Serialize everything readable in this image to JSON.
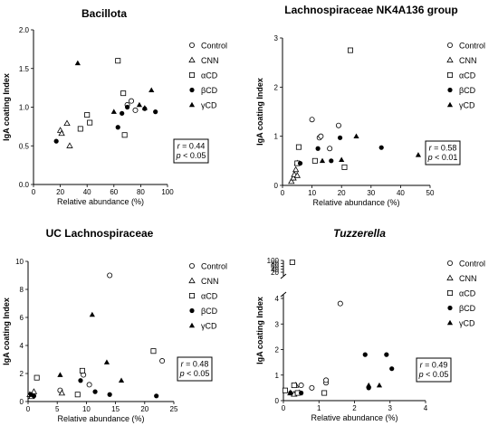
{
  "chart_data": [
    {
      "type": "scatter",
      "title": "Bacillota",
      "title_italic": false,
      "xlabel": "Relative abundance (%)",
      "ylabel": "IgA coating Index",
      "xlim": [
        0,
        100
      ],
      "ylim": [
        0,
        2.0
      ],
      "xticks": [
        "0",
        "20",
        "40",
        "60",
        "80",
        "100"
      ],
      "yticks": [
        "0.0",
        "0.5",
        "1.0",
        "1.5",
        "2.0"
      ],
      "legend_position": "top-right",
      "stat": {
        "r": "0.44",
        "p": "< 0.05"
      },
      "series": [
        {
          "name": "Control",
          "values": [
            [
              70,
              1.03
            ],
            [
              73,
              1.08
            ],
            [
              76,
              0.96
            ]
          ]
        },
        {
          "name": "CNN",
          "values": [
            [
              20,
              0.7
            ],
            [
              21,
              0.66
            ],
            [
              25,
              0.79
            ],
            [
              27,
              0.5
            ]
          ]
        },
        {
          "name": "αCD",
          "values": [
            [
              35,
              0.72
            ],
            [
              40,
              0.9
            ],
            [
              42,
              0.8
            ],
            [
              63,
              1.6
            ],
            [
              67,
              1.18
            ],
            [
              68,
              0.64
            ]
          ]
        },
        {
          "name": "βCD",
          "values": [
            [
              17,
              0.56
            ],
            [
              63,
              0.74
            ],
            [
              66,
              0.92
            ],
            [
              70,
              1.0
            ],
            [
              83,
              0.98
            ],
            [
              91,
              0.94
            ]
          ]
        },
        {
          "name": "γCD",
          "values": [
            [
              33,
              1.57
            ],
            [
              60,
              0.94
            ],
            [
              79,
              1.03
            ],
            [
              83,
              0.99
            ],
            [
              88,
              1.22
            ]
          ]
        }
      ]
    },
    {
      "type": "scatter",
      "title": "Lachnospiraceae NK4A136 group",
      "title_italic": false,
      "xlabel": "Relative abundance (%)",
      "ylabel": "IgA coating Index",
      "xlim": [
        0,
        50
      ],
      "ylim": [
        0,
        3
      ],
      "xticks": [
        "0",
        "10",
        "20",
        "30",
        "40",
        "50"
      ],
      "yticks": [
        "0",
        "1",
        "2",
        "3"
      ],
      "legend_position": "top-right",
      "stat": {
        "r": "0.58",
        "p": "< 0.01"
      },
      "series": [
        {
          "name": "Control",
          "values": [
            [
              10,
              1.34
            ],
            [
              12.5,
              0.97
            ],
            [
              13,
              1.0
            ],
            [
              16,
              0.75
            ],
            [
              19,
              1.22
            ]
          ]
        },
        {
          "name": "CNN",
          "values": [
            [
              3,
              0.08
            ],
            [
              3.7,
              0.15
            ],
            [
              4,
              0.22
            ],
            [
              4.5,
              0.32
            ],
            [
              5,
              0.2
            ],
            [
              5,
              0.45
            ]
          ]
        },
        {
          "name": "αCD",
          "values": [
            [
              5,
              0.45
            ],
            [
              5.5,
              0.78
            ],
            [
              11,
              0.5
            ],
            [
              21,
              0.37
            ],
            [
              23,
              2.75
            ]
          ]
        },
        {
          "name": "βCD",
          "values": [
            [
              6,
              0.45
            ],
            [
              12,
              0.75
            ],
            [
              16.5,
              0.5
            ],
            [
              19.5,
              0.97
            ],
            [
              33.5,
              0.77
            ]
          ]
        },
        {
          "name": "γCD",
          "values": [
            [
              13.5,
              0.5
            ],
            [
              20,
              0.52
            ],
            [
              25,
              1.0
            ],
            [
              46,
              0.62
            ]
          ]
        }
      ]
    },
    {
      "type": "scatter",
      "title": "UC Lachnospiraceae",
      "title_italic": false,
      "xlabel": "Relative abundance (%)",
      "ylabel": "IgA coating Index",
      "xlim": [
        0,
        25
      ],
      "ylim": [
        0,
        10
      ],
      "xticks": [
        "0",
        "5",
        "10",
        "15",
        "20",
        "25"
      ],
      "yticks": [
        "0",
        "2",
        "4",
        "6",
        "8",
        "10"
      ],
      "legend_position": "top-right",
      "stat": {
        "r": "0.48",
        "p": "< 0.05"
      },
      "series": [
        {
          "name": "Control",
          "values": [
            [
              5.5,
              0.8
            ],
            [
              9.5,
              1.9
            ],
            [
              10.5,
              1.2
            ],
            [
              14,
              9.0
            ],
            [
              23,
              2.9
            ]
          ]
        },
        {
          "name": "CNN",
          "values": [
            [
              0.3,
              0.5
            ],
            [
              0.6,
              0.35
            ],
            [
              1,
              0.7
            ],
            [
              5.8,
              0.6
            ]
          ]
        },
        {
          "name": "αCD",
          "values": [
            [
              1.5,
              1.7
            ],
            [
              8.5,
              0.5
            ],
            [
              9.3,
              2.2
            ],
            [
              21.5,
              3.6
            ]
          ]
        },
        {
          "name": "βCD",
          "values": [
            [
              0.5,
              0.5
            ],
            [
              1,
              0.4
            ],
            [
              9,
              1.5
            ],
            [
              11.5,
              0.7
            ],
            [
              14,
              0.5
            ],
            [
              22,
              0.4
            ]
          ]
        },
        {
          "name": "γCD",
          "values": [
            [
              5.5,
              1.9
            ],
            [
              11,
              6.2
            ],
            [
              13.5,
              2.8
            ],
            [
              16,
              1.5
            ]
          ]
        }
      ]
    },
    {
      "type": "scatter",
      "title": "Tuzzerella",
      "title_italic": true,
      "xlabel": "Relative abundance (%)",
      "ylabel": "IgA coating Index",
      "xlim": [
        0,
        4
      ],
      "ylim": [
        0,
        100
      ],
      "y_axis_break": {
        "lower": [
          0,
          4
        ],
        "upper": [
          20,
          100
        ]
      },
      "xticks": [
        "0",
        "1",
        "2",
        "3",
        "4"
      ],
      "yticks": [
        "0",
        "1",
        "2",
        "3",
        "4",
        "20",
        "40",
        "60",
        "80",
        "100"
      ],
      "legend_position": "top-right",
      "stat": {
        "r": "0.49",
        "p": "< 0.05"
      },
      "series": [
        {
          "name": "Control",
          "values": [
            [
              0.5,
              0.6
            ],
            [
              0.8,
              0.5
            ],
            [
              1.2,
              0.7
            ],
            [
              1.2,
              0.8
            ],
            [
              1.6,
              3.8
            ]
          ]
        },
        {
          "name": "CNN",
          "values": [
            [
              0.2,
              0.3
            ],
            [
              0.3,
              0.25
            ],
            [
              0.35,
              0.6
            ],
            [
              0.45,
              0.3
            ]
          ]
        },
        {
          "name": "αCD",
          "values": [
            [
              0.05,
              0.4
            ],
            [
              0.25,
              88
            ],
            [
              0.3,
              0.6
            ],
            [
              0.4,
              0.3
            ],
            [
              1.15,
              0.3
            ]
          ]
        },
        {
          "name": "βCD",
          "values": [
            [
              0.2,
              0.3
            ],
            [
              0.5,
              0.3
            ],
            [
              2.3,
              1.8
            ],
            [
              2.4,
              0.5
            ],
            [
              2.9,
              1.8
            ],
            [
              3.05,
              1.25
            ]
          ]
        },
        {
          "name": "γCD",
          "values": [
            [
              2.4,
              0.6
            ],
            [
              2.7,
              0.6
            ]
          ]
        }
      ]
    }
  ]
}
